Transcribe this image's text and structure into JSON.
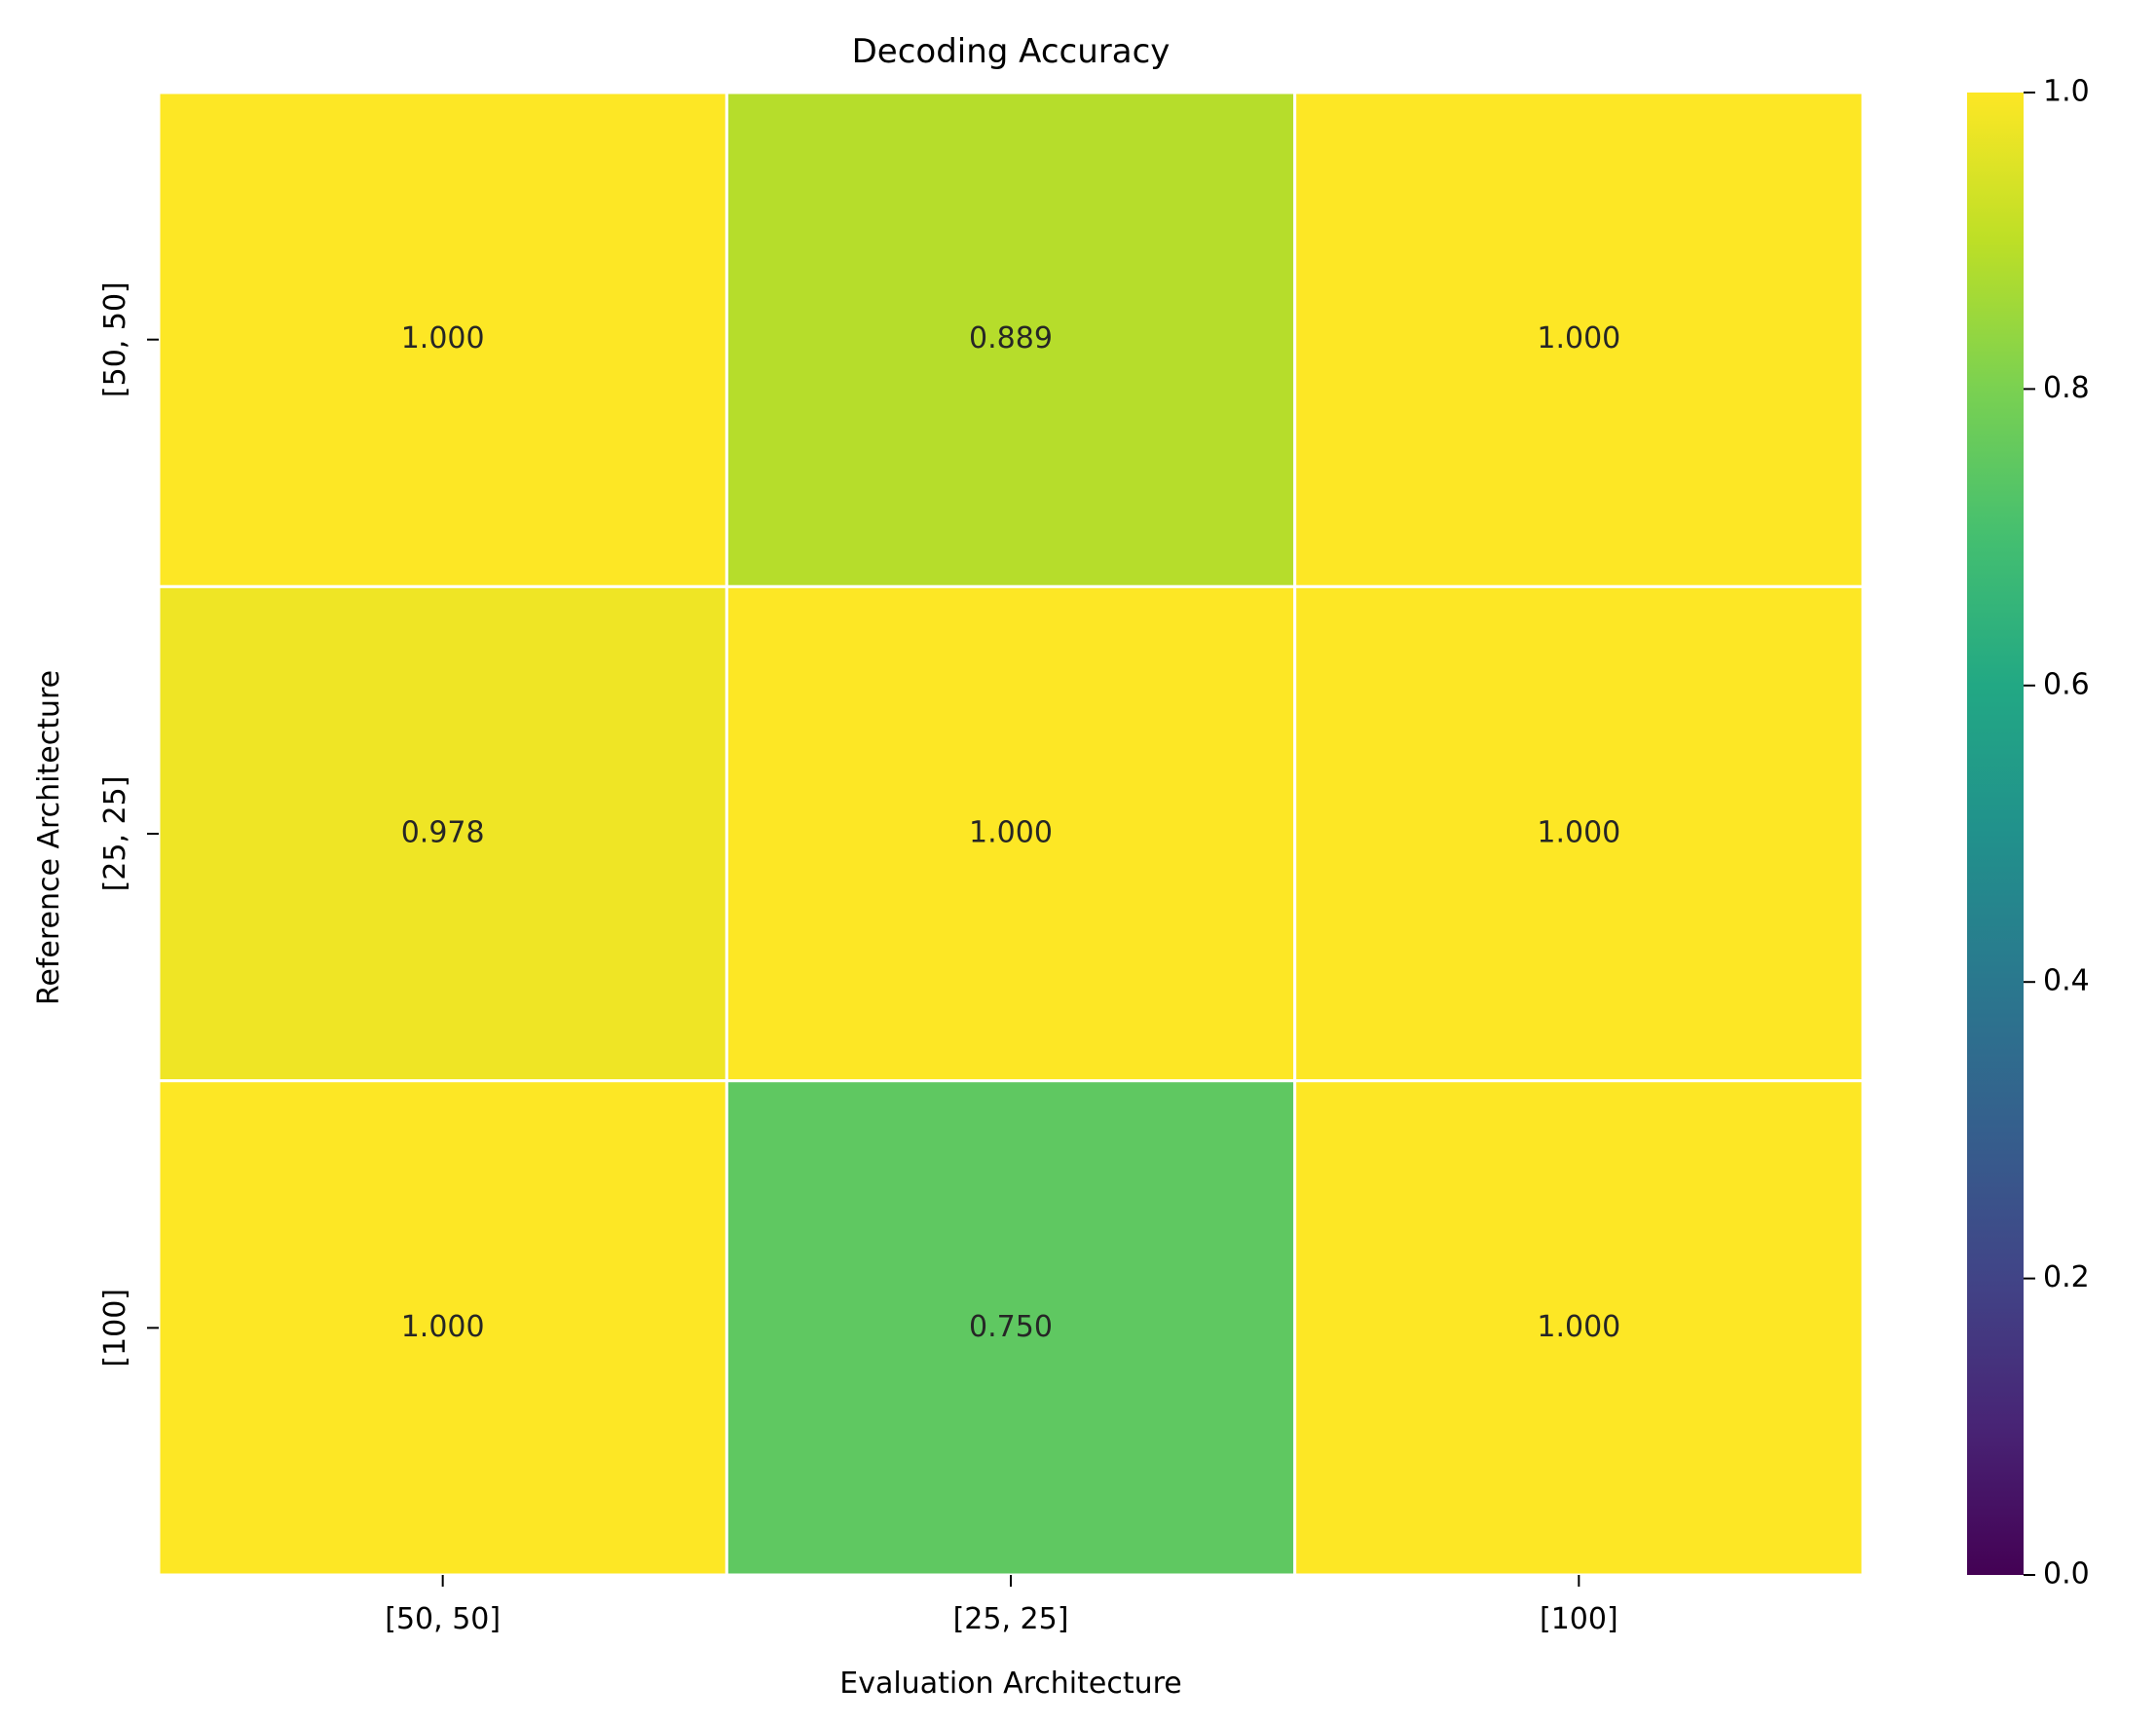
{
  "chart_data": {
    "type": "heatmap",
    "title": "Decoding Accuracy",
    "xlabel": "Evaluation Architecture",
    "ylabel": "Reference Architecture",
    "x_categories": [
      "[50, 50]",
      "[25, 25]",
      "[100]"
    ],
    "y_categories": [
      "[50, 50]",
      "[25, 25]",
      "[100]"
    ],
    "values": [
      [
        1.0,
        0.889,
        1.0
      ],
      [
        0.978,
        1.0,
        1.0
      ],
      [
        1.0,
        0.75,
        1.0
      ]
    ],
    "value_labels": [
      [
        "1.000",
        "0.889",
        "1.000"
      ],
      [
        "0.978",
        "1.000",
        "1.000"
      ],
      [
        "1.000",
        "0.750",
        "1.000"
      ]
    ],
    "colormap": "viridis",
    "vmin": 0.0,
    "vmax": 1.0,
    "colorbar_ticks": [
      "0.0",
      "0.2",
      "0.4",
      "0.6",
      "0.8",
      "1.0"
    ],
    "annotation_color": "#262626",
    "cell_border_color": "#ffffff"
  }
}
